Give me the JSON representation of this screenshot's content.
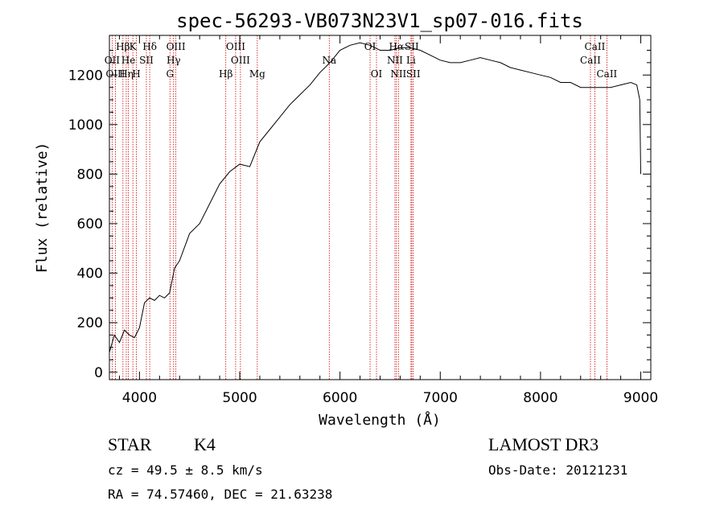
{
  "title": "spec-56293-VB073N23V1_sp07-016.fits",
  "chart_data": {
    "type": "line",
    "title": "spec-56293-VB073N23V1_sp07-016.fits",
    "xlabel": "Wavelength (Å)",
    "ylabel": "Flux (relative)",
    "xlim": [
      3700,
      9100
    ],
    "ylim": [
      -30,
      1360
    ],
    "xticks": [
      4000,
      5000,
      6000,
      7000,
      8000,
      9000
    ],
    "yticks": [
      0,
      200,
      400,
      600,
      800,
      1000,
      1200
    ],
    "xtick_labels": [
      "4000",
      "5000",
      "6000",
      "7000",
      "8000",
      "9000"
    ],
    "ytick_labels": [
      "0",
      "200",
      "400",
      "600",
      "800",
      "1000",
      "1200"
    ],
    "grid": false,
    "series": [
      {
        "color": "#000000",
        "x": [
          3700,
          3750,
          3800,
          3850,
          3900,
          3950,
          4000,
          4050,
          4100,
          4150,
          4200,
          4250,
          4300,
          4350,
          4400,
          4500,
          4600,
          4700,
          4800,
          4900,
          5000,
          5100,
          5200,
          5300,
          5400,
          5500,
          5600,
          5700,
          5800,
          5900,
          6000,
          6100,
          6200,
          6300,
          6400,
          6500,
          6600,
          6700,
          6800,
          6900,
          7000,
          7100,
          7200,
          7300,
          7400,
          7500,
          7600,
          7700,
          7800,
          7900,
          8000,
          8100,
          8200,
          8300,
          8400,
          8500,
          8600,
          8700,
          8800,
          8900,
          8960,
          8990,
          9000
        ],
        "y": [
          80,
          150,
          120,
          170,
          150,
          140,
          180,
          280,
          300,
          290,
          310,
          300,
          320,
          420,
          450,
          560,
          600,
          680,
          760,
          810,
          840,
          830,
          930,
          980,
          1030,
          1080,
          1120,
          1160,
          1210,
          1250,
          1300,
          1320,
          1330,
          1320,
          1300,
          1300,
          1310,
          1310,
          1300,
          1280,
          1260,
          1250,
          1250,
          1260,
          1270,
          1260,
          1250,
          1230,
          1220,
          1210,
          1200,
          1190,
          1170,
          1170,
          1150,
          1150,
          1150,
          1150,
          1160,
          1170,
          1160,
          1100,
          800
        ]
      }
    ],
    "spectral_lines": [
      {
        "label": "Hβ",
        "wavelength": 3835,
        "row": 1
      },
      {
        "label": "OII",
        "wavelength": 3727,
        "row": 2
      },
      {
        "label": "OIII",
        "wavelength": 3760,
        "row": 3
      },
      {
        "label": "He",
        "wavelength": 3889,
        "row": 2
      },
      {
        "label": "Hη",
        "wavelength": 3868,
        "row": 3
      },
      {
        "label": "K",
        "wavelength": 3934,
        "row": 1
      },
      {
        "label": "H",
        "wavelength": 3969,
        "row": 3
      },
      {
        "label": "SII",
        "wavelength": 4069,
        "row": 2
      },
      {
        "label": "Hδ",
        "wavelength": 4102,
        "row": 1
      },
      {
        "label": "OIII",
        "wavelength": 4363,
        "row": 1
      },
      {
        "label": "Hγ",
        "wavelength": 4340,
        "row": 2
      },
      {
        "label": "G",
        "wavelength": 4304,
        "row": 3
      },
      {
        "label": "OIII",
        "wavelength": 4959,
        "row": 1
      },
      {
        "label": "OIII",
        "wavelength": 5007,
        "row": 2
      },
      {
        "label": "Hβ",
        "wavelength": 4861,
        "row": 3
      },
      {
        "label": "Mg",
        "wavelength": 5175,
        "row": 3
      },
      {
        "label": "Na",
        "wavelength": 5893,
        "row": 2
      },
      {
        "label": "OI",
        "wavelength": 6300,
        "row": 1
      },
      {
        "label": "OI",
        "wavelength": 6364,
        "row": 3
      },
      {
        "label": "Hα",
        "wavelength": 6563,
        "row": 1
      },
      {
        "label": "NII",
        "wavelength": 6548,
        "row": 2
      },
      {
        "label": "NII",
        "wavelength": 6583,
        "row": 3
      },
      {
        "label": "SII",
        "wavelength": 6716,
        "row": 1
      },
      {
        "label": "Li",
        "wavelength": 6708,
        "row": 2
      },
      {
        "label": "SII",
        "wavelength": 6731,
        "row": 3
      },
      {
        "label": "CaII",
        "wavelength": 8498,
        "row": 2
      },
      {
        "label": "CaII",
        "wavelength": 8542,
        "row": 1
      },
      {
        "label": "CaII",
        "wavelength": 8662,
        "row": 3
      }
    ]
  },
  "info": {
    "class_label": "STAR",
    "subclass": "K4",
    "survey": "LAMOST DR3",
    "cz": "cz = 49.5 ± 8.5 km/s",
    "obs_date": "Obs-Date: 20121231",
    "coords": "RA =  74.57460, DEC =  21.63238"
  },
  "colors": {
    "axes": "#000000",
    "spectrum": "#000000",
    "line_markers": "#cc0000"
  }
}
